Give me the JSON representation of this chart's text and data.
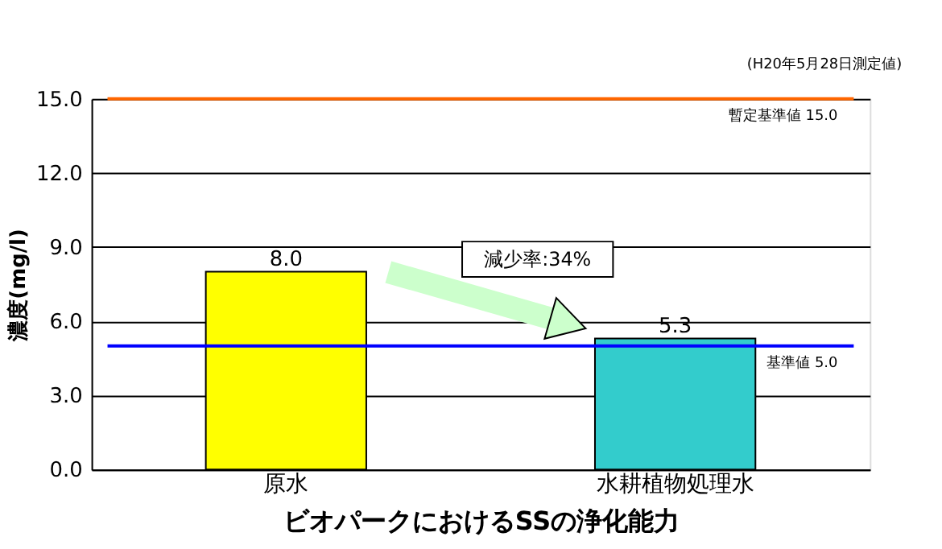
{
  "chart_data": {
    "type": "bar",
    "xlabel": "ビオパークにおけるSSの浄化能力",
    "ylabel": "濃度(mg/l)",
    "categories": [
      "原水",
      "水耕植物処理水"
    ],
    "values": [
      8.0,
      5.3
    ],
    "colors": [
      "#ffff00",
      "#33cccc"
    ],
    "value_labels": [
      "8.0",
      "5.3"
    ],
    "ylim": [
      0,
      15
    ],
    "yticks": [
      {
        "value": 0,
        "label": "0.0"
      },
      {
        "value": 3,
        "label": "3.0"
      },
      {
        "value": 6,
        "label": "6.0"
      },
      {
        "value": 9,
        "label": "9.0"
      },
      {
        "value": 12,
        "label": "12.0"
      },
      {
        "value": 15,
        "label": "15.0"
      }
    ],
    "grid": "y",
    "ref_lines": [
      {
        "axis": "y",
        "value": 15,
        "label": "暫定基準値 15.0",
        "color": "#ff6600"
      },
      {
        "axis": "y",
        "value": 5,
        "label": "基準値 5.0",
        "color": "#0000ff"
      }
    ],
    "annotations": [
      "(H20年5月28日測定値)",
      "減少率:34%"
    ]
  }
}
